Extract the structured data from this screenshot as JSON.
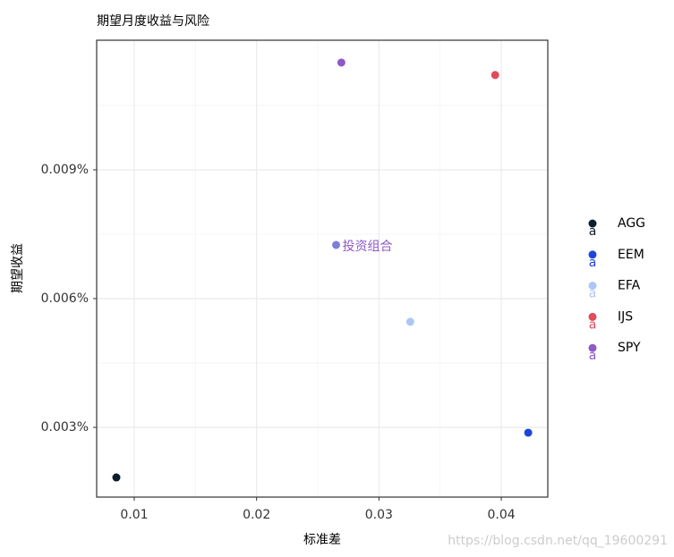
{
  "chart_data": {
    "type": "scatter",
    "title": "期望月度收益与风险",
    "x_label": "标准差",
    "y_label": "期望收益",
    "xlim": [
      0.00693,
      0.0438
    ],
    "ylim": [
      0.001375,
      0.01202
    ],
    "xticks": [
      0.01,
      0.02,
      0.03,
      0.04
    ],
    "yticks": [
      {
        "value": 0.003,
        "label": "0.003%"
      },
      {
        "value": 0.006,
        "label": "0.006%"
      },
      {
        "value": 0.009,
        "label": "0.009%"
      }
    ],
    "minor_xticks": [
      0.015,
      0.025,
      0.035
    ],
    "minor_yticks": [
      0.0045,
      0.0075,
      0.0105
    ],
    "grid": true,
    "legend_position": "right",
    "series": [
      {
        "name": "AGG",
        "color": "#0b1e2c",
        "x": [
          0.00854
        ],
        "values": [
          0.001833
        ]
      },
      {
        "name": "EEM",
        "color": "#1f45d8",
        "x": [
          0.0422
        ],
        "values": [
          0.002875
        ]
      },
      {
        "name": "EFA",
        "color": "#aec6f5",
        "x": [
          0.03256
        ],
        "values": [
          0.00546
        ]
      },
      {
        "name": "IJS",
        "color": "#e04c5c",
        "x": [
          0.0395
        ],
        "values": [
          0.01121
        ]
      },
      {
        "name": "SPY",
        "color": "#8e5ac8",
        "x": [
          0.02693
        ],
        "values": [
          0.0115
        ]
      }
    ],
    "annotation": {
      "text": "投资组合",
      "x": 0.0265,
      "y": 0.00725,
      "color": "#8e5ac8",
      "point_color": "#7b80d6"
    },
    "legend_key_glyph": "a",
    "watermark": "https://blog.csdn.net/qq_19600291"
  }
}
